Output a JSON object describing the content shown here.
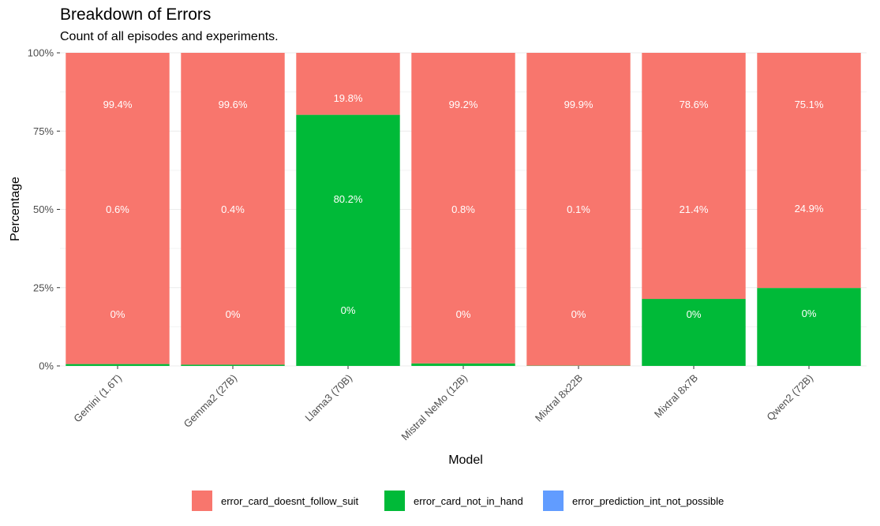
{
  "chart_data": {
    "type": "bar",
    "stacked": true,
    "title": "Breakdown of Errors",
    "subtitle": "Count of all episodes and experiments.",
    "xlabel": "Model",
    "ylabel": "Percentage",
    "ylim": [
      0,
      100
    ],
    "yticks": [
      "0%",
      "25%",
      "50%",
      "75%",
      "100%"
    ],
    "grid": true,
    "legend_position": "bottom",
    "categories": [
      "Gemini (1.6T)",
      "Gemma2 (27B)",
      "Llama3 (70B)",
      "Mistral NeMo (12B)",
      "Mixtral 8x22B",
      "Mixtral 8x7B",
      "Qwen2 (72B)"
    ],
    "series": [
      {
        "name": "error_card_doesnt_follow_suit",
        "color": "#F8766D",
        "values": [
          99.4,
          99.6,
          19.8,
          99.2,
          99.9,
          78.6,
          75.1
        ],
        "labels": [
          "99.4%",
          "99.6%",
          "19.8%",
          "99.2%",
          "99.9%",
          "78.6%",
          "75.1%"
        ]
      },
      {
        "name": "error_card_not_in_hand",
        "color": "#00BA38",
        "values": [
          0.6,
          0.4,
          80.2,
          0.8,
          0.1,
          21.4,
          24.9
        ],
        "labels": [
          "0.6%",
          "0.4%",
          "80.2%",
          "0.8%",
          "0.1%",
          "21.4%",
          "24.9%"
        ]
      },
      {
        "name": "error_prediction_int_not_possible",
        "color": "#619CFF",
        "values": [
          0,
          0,
          0,
          0,
          0,
          0,
          0
        ],
        "labels": [
          "0%",
          "0%",
          "0%",
          "0%",
          "0%",
          "0%",
          "0%"
        ]
      }
    ]
  }
}
